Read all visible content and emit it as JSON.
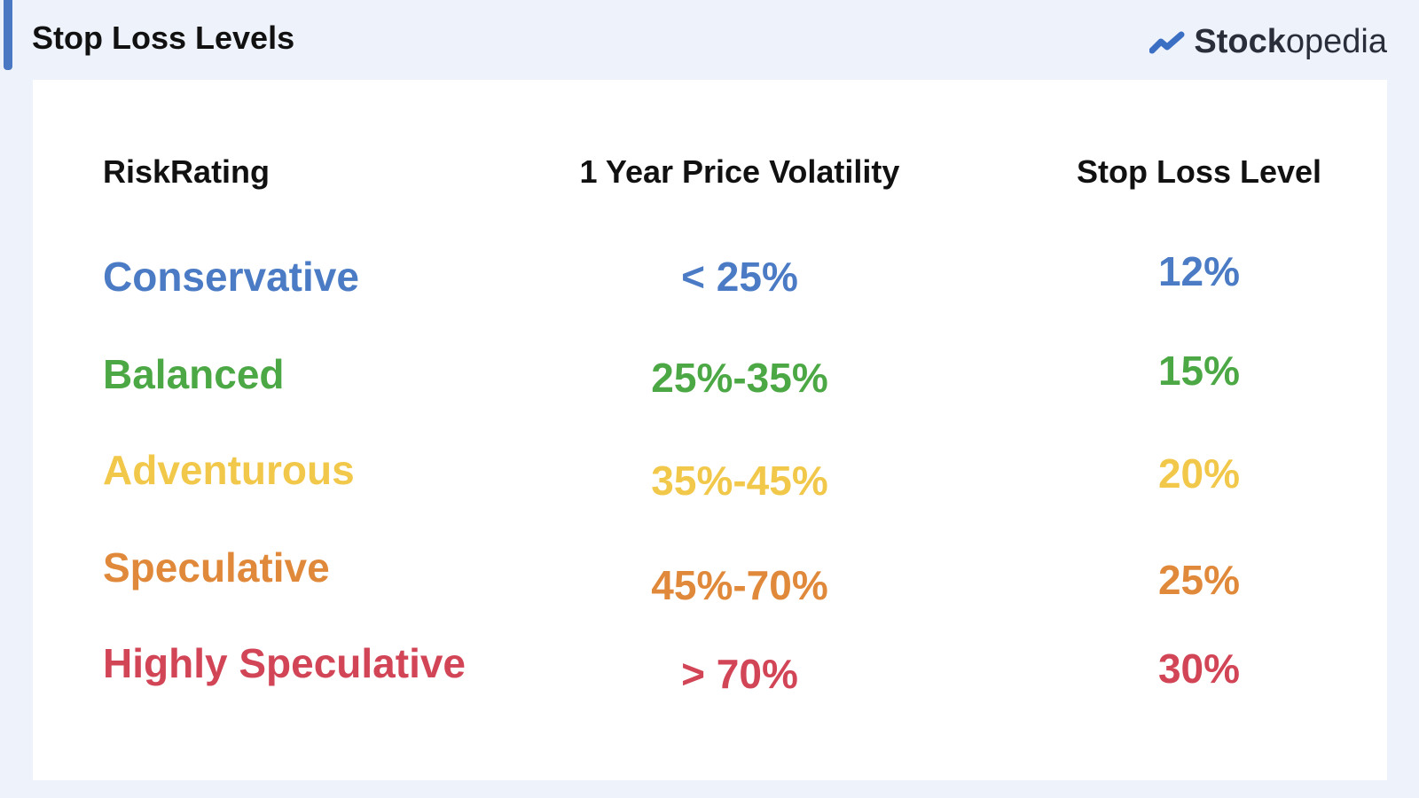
{
  "header": {
    "title": "Stop Loss Levels",
    "brand": {
      "bold": "Stock",
      "light": "opedia"
    }
  },
  "table": {
    "columns": [
      "RiskRating",
      "1 Year Price Volatility",
      "Stop Loss Level"
    ],
    "rows": [
      {
        "color": "#4a7bc4",
        "cells": [
          "Conservative",
          "< 25%",
          "12%"
        ]
      },
      {
        "color": "#4ca845",
        "cells": [
          "Balanced",
          "25%-35%",
          "15%"
        ]
      },
      {
        "color": "#f2c84b",
        "cells": [
          "Adventurous",
          "35%-45%",
          "20%"
        ]
      },
      {
        "color": "#e0893a",
        "cells": [
          "Speculative",
          "45%-70%",
          "25%"
        ]
      },
      {
        "color": "#d24556",
        "cells": [
          "Highly Speculative",
          "> 70%",
          "30%"
        ]
      }
    ]
  }
}
